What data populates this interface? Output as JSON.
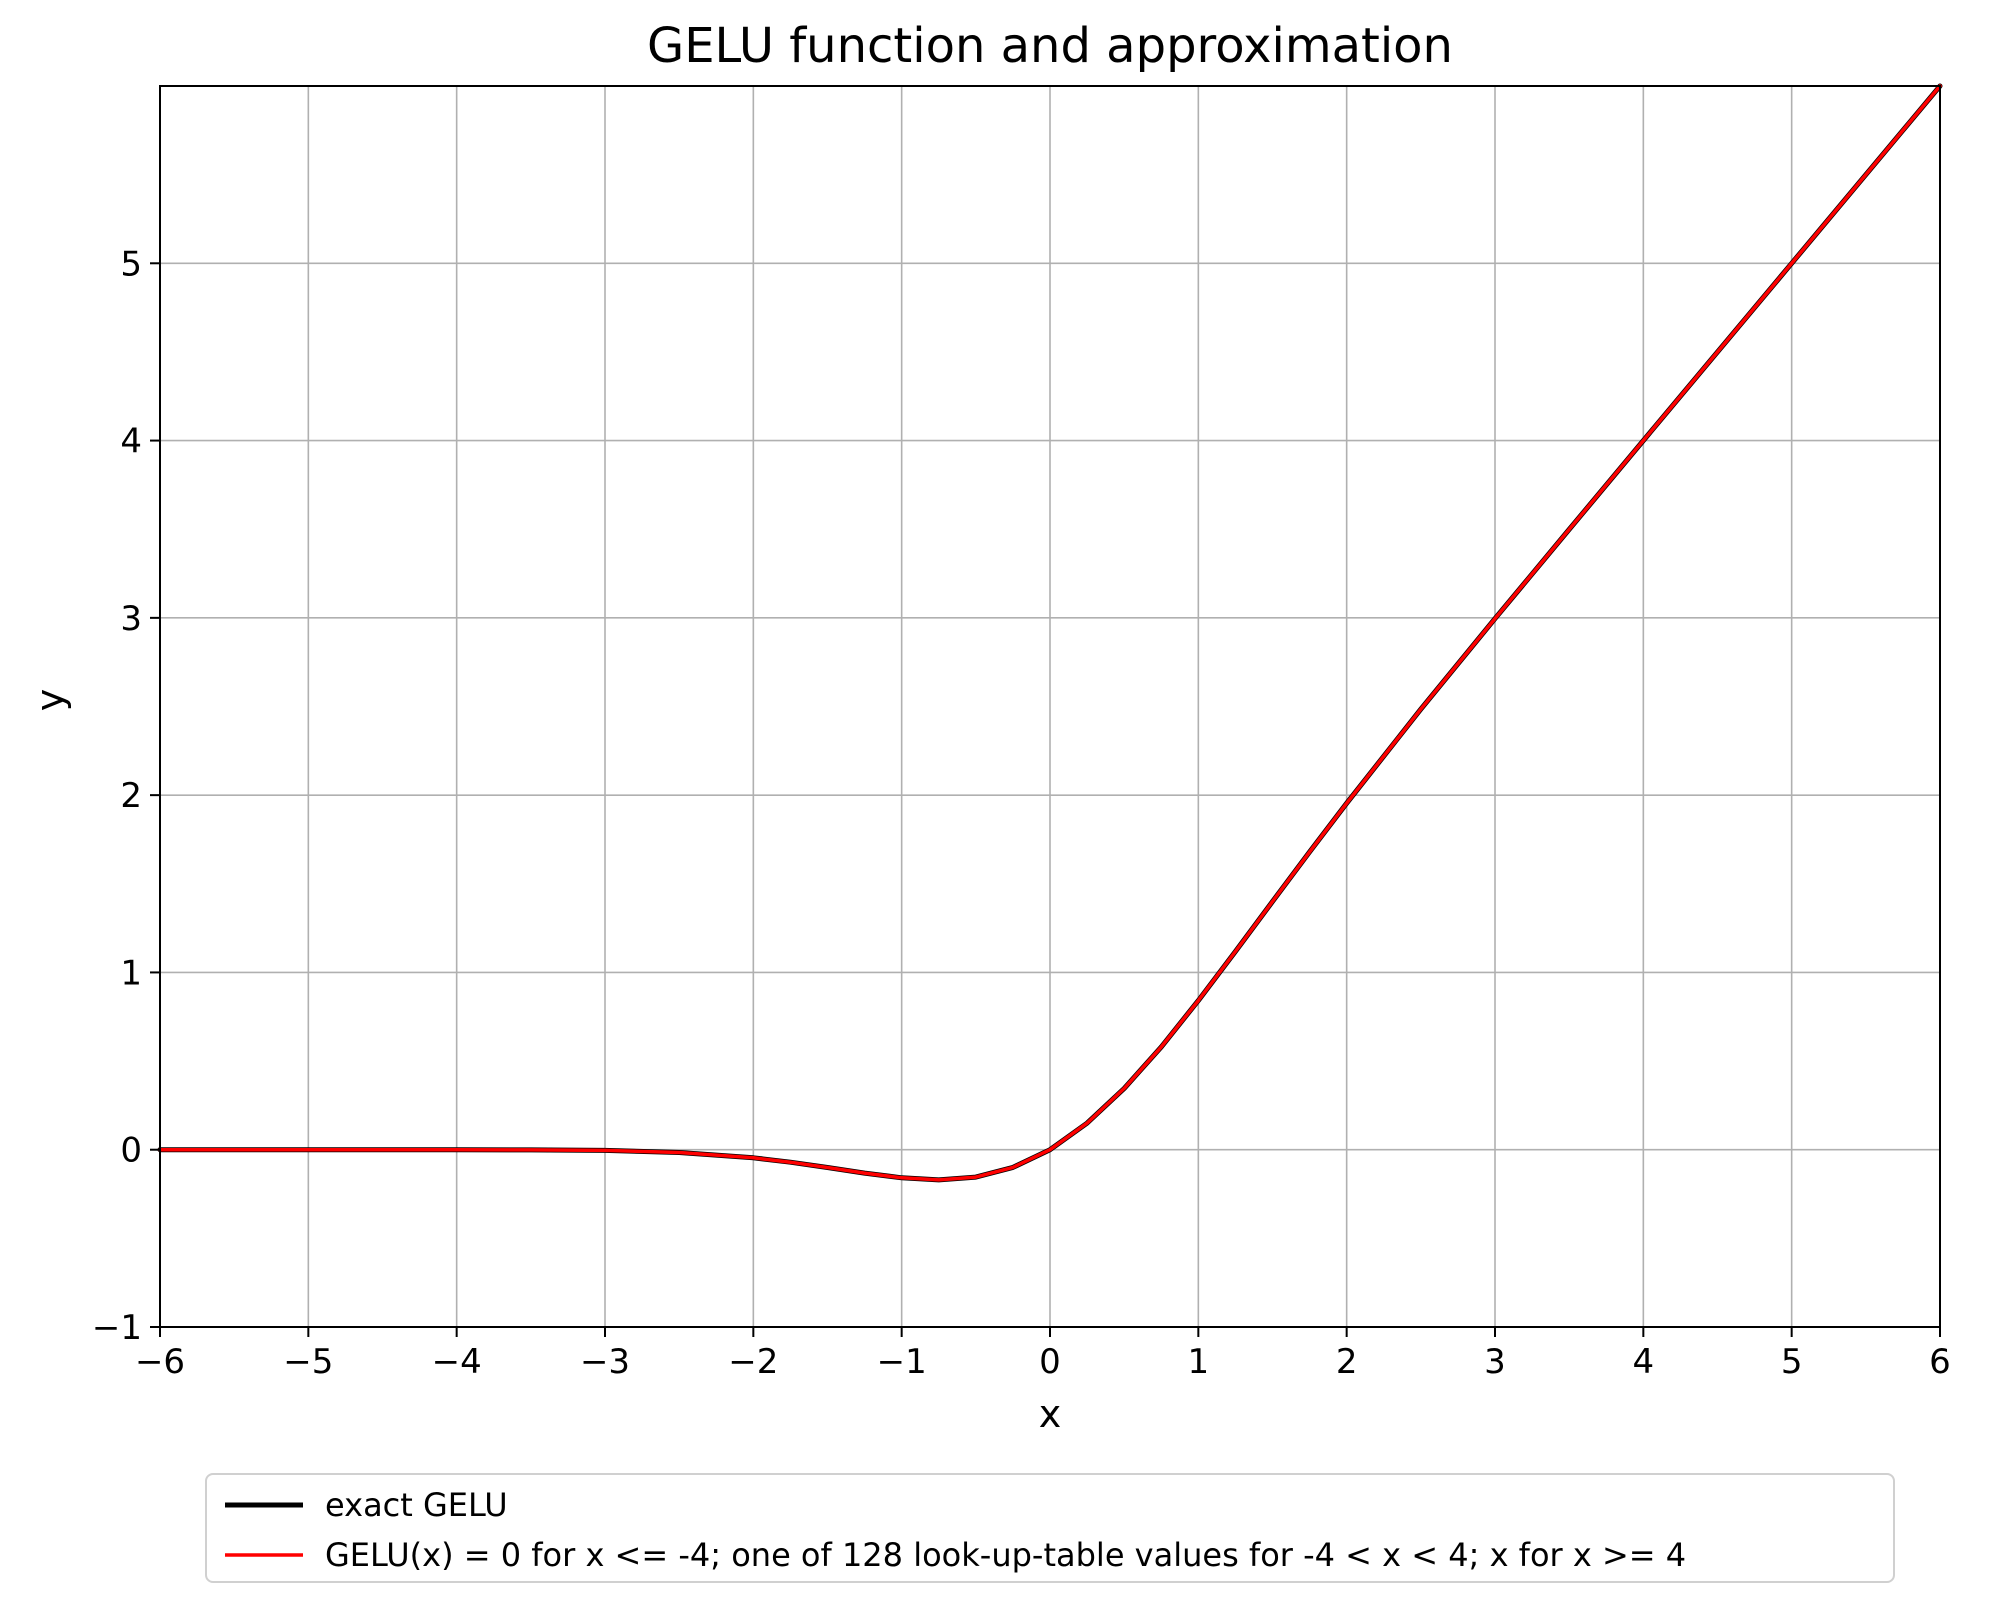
{
  "chart_data": {
    "type": "line",
    "title": "GELU function and approximation",
    "xlabel": "x",
    "ylabel": "y",
    "xlim": [
      -6,
      6
    ],
    "ylim": [
      -1,
      6
    ],
    "xticks": [
      "−6",
      "−5",
      "−4",
      "−3",
      "−2",
      "−1",
      "0",
      "1",
      "2",
      "3",
      "4",
      "5",
      "6"
    ],
    "yticks": [
      "−1",
      "0",
      "1",
      "2",
      "3",
      "4",
      "5"
    ],
    "grid": true,
    "legend_position": "bottom-outside",
    "series": [
      {
        "name": "exact GELU",
        "color": "#000000",
        "style": "solid",
        "x": [
          -6,
          -5,
          -4,
          -3.5,
          -3,
          -2.5,
          -2,
          -1.75,
          -1.5,
          -1.25,
          -1,
          -0.75,
          -0.5,
          -0.25,
          0,
          0.25,
          0.5,
          0.75,
          1,
          1.25,
          1.5,
          1.75,
          2,
          2.5,
          3,
          3.5,
          4,
          5,
          6
        ],
        "y": [
          0,
          0,
          -0.0001,
          -0.0008,
          -0.004,
          -0.0155,
          -0.0455,
          -0.0702,
          -0.1002,
          -0.132,
          -0.1587,
          -0.17,
          -0.1543,
          -0.0998,
          0,
          0.1502,
          0.3457,
          0.58,
          0.8413,
          1.118,
          1.3998,
          1.6798,
          1.9545,
          2.4845,
          2.996,
          3.4992,
          3.9999,
          5,
          6
        ]
      },
      {
        "name": "GELU(x) = 0 for x <= -4; one of 128 look-up-table values for -4 < x < 4; x for x >= 4",
        "color": "#ff0000",
        "style": "solid",
        "x": [
          -6,
          -4,
          -3.5,
          -3,
          -2.5,
          -2,
          -1.75,
          -1.5,
          -1.25,
          -1,
          -0.75,
          -0.5,
          -0.25,
          0,
          0.25,
          0.5,
          0.75,
          1,
          1.25,
          1.5,
          1.75,
          2,
          2.5,
          3,
          3.5,
          3.94,
          4,
          5,
          6
        ],
        "y": [
          0,
          0,
          -0.0008,
          -0.004,
          -0.0155,
          -0.0455,
          -0.0702,
          -0.1002,
          -0.132,
          -0.1587,
          -0.17,
          -0.1543,
          -0.0998,
          0,
          0.1502,
          0.3457,
          0.58,
          0.8413,
          1.118,
          1.3998,
          1.6798,
          1.9545,
          2.4845,
          2.996,
          3.4992,
          3.94,
          4,
          5,
          6
        ]
      }
    ]
  }
}
